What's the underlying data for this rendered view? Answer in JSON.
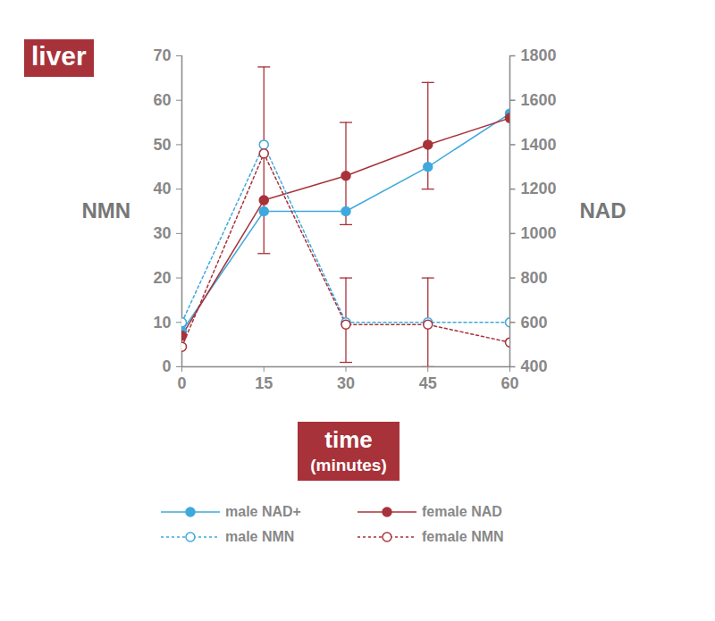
{
  "chart_data": {
    "type": "line",
    "title": "liver",
    "xlabel": "time\n(minutes)",
    "ylabel": "NMN",
    "y2label": "NAD",
    "x": [
      0,
      15,
      30,
      45,
      60
    ],
    "xlim": [
      0,
      60
    ],
    "xticks": [
      0,
      15,
      30,
      45,
      60
    ],
    "ylim": [
      0,
      70
    ],
    "yticks": [
      0,
      10,
      20,
      30,
      40,
      50,
      60,
      70
    ],
    "y2lim": [
      400,
      1800
    ],
    "y2ticks": [
      400,
      600,
      800,
      1000,
      1200,
      1400,
      1600,
      1800
    ],
    "grid": false,
    "legend": "bottom",
    "series": [
      {
        "name": "male NAD+",
        "color": "#3fa9dd",
        "axis": "y2",
        "marker": "filled circle",
        "line_style": "solid",
        "values": [
          560,
          1100,
          1100,
          1300,
          1540
        ]
      },
      {
        "name": "female NAD",
        "color": "#a8323a",
        "axis": "y2",
        "marker": "filled circle",
        "line_style": "solid",
        "values": [
          540,
          1150,
          1260,
          1400,
          1520
        ],
        "error_low": [
          null,
          null,
          1040,
          1200,
          null
        ],
        "error_high": [
          null,
          null,
          1500,
          1680,
          null
        ]
      },
      {
        "name": "male NMN",
        "color": "#3fa9dd",
        "axis": "y",
        "marker": "open circle",
        "line_style": "dotted",
        "values": [
          10,
          50,
          10,
          10,
          10
        ]
      },
      {
        "name": "female NMN",
        "color": "#a8323a",
        "axis": "y",
        "marker": "open circle",
        "line_style": "dotted",
        "values": [
          4.5,
          48,
          9.5,
          9.5,
          5.5
        ],
        "error_low": [
          null,
          25.5,
          1,
          0,
          null
        ],
        "error_high": [
          null,
          67.5,
          20,
          20,
          null
        ]
      }
    ]
  }
}
